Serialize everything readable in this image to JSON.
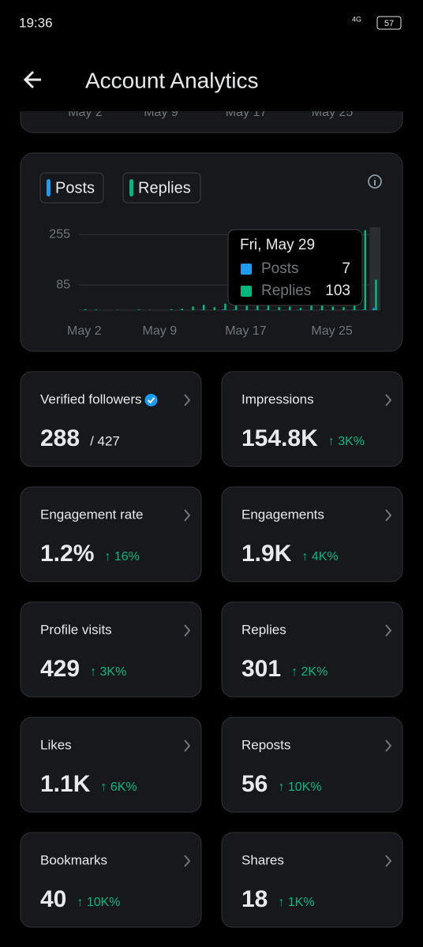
{
  "status_bar": {
    "time": "19:36",
    "network": "4G",
    "battery": "57"
  },
  "header": {
    "title": "Account Analytics"
  },
  "previous_chart": {
    "x_labels": [
      "May 2",
      "May 9",
      "May 17",
      "May 25"
    ]
  },
  "activity_chart": {
    "type": "bar",
    "categories": [
      "May 2",
      null,
      null,
      null,
      null,
      null,
      null,
      "May 9",
      null,
      null,
      null,
      null,
      null,
      null,
      null,
      "May 17",
      null,
      null,
      null,
      null,
      null,
      null,
      null,
      "May 25",
      null,
      null,
      null,
      null
    ],
    "series": [
      {
        "name": "Posts",
        "color": "#1d9bf0",
        "values": [
          0,
          0,
          0,
          0,
          0,
          0,
          0,
          0,
          0,
          1,
          0,
          1,
          0,
          2,
          1,
          0,
          1,
          1,
          0,
          0,
          1,
          0,
          1,
          0,
          0,
          1,
          2,
          7
        ]
      },
      {
        "name": "Replies",
        "color": "#00ba7c",
        "values": [
          3,
          2,
          0,
          1,
          0,
          2,
          1,
          0,
          3,
          5,
          12,
          18,
          10,
          22,
          30,
          15,
          20,
          25,
          10,
          12,
          8,
          15,
          20,
          12,
          10,
          18,
          270,
          103
        ]
      }
    ],
    "ylim": [
      0,
      280
    ],
    "yticks": [
      255,
      85
    ],
    "grid": true,
    "tooltip": {
      "date": "Fri, May 29",
      "index": 27
    }
  },
  "metrics": [
    {
      "label": "Verified followers",
      "value": "288",
      "total": "/ 427"
    },
    {
      "label": "Impressions",
      "value": "154.8K",
      "change": "↑ 3K%"
    },
    {
      "label": "Engagement rate",
      "value": "1.2%",
      "change": "↑ 16%"
    },
    {
      "label": "Engagements",
      "value": "1.9K",
      "change": "↑ 4K%"
    },
    {
      "label": "Profile visits",
      "value": "429",
      "change": "↑ 3K%"
    },
    {
      "label": "Replies",
      "value": "301",
      "change": "↑ 2K%"
    },
    {
      "label": "Likes",
      "value": "1.1K",
      "change": "↑ 6K%"
    },
    {
      "label": "Reposts",
      "value": "56",
      "change": "↑ 10K%"
    },
    {
      "label": "Bookmarks",
      "value": "40",
      "change": "↑ 10K%"
    },
    {
      "label": "Shares",
      "value": "18",
      "change": "↑ 1K%"
    }
  ]
}
